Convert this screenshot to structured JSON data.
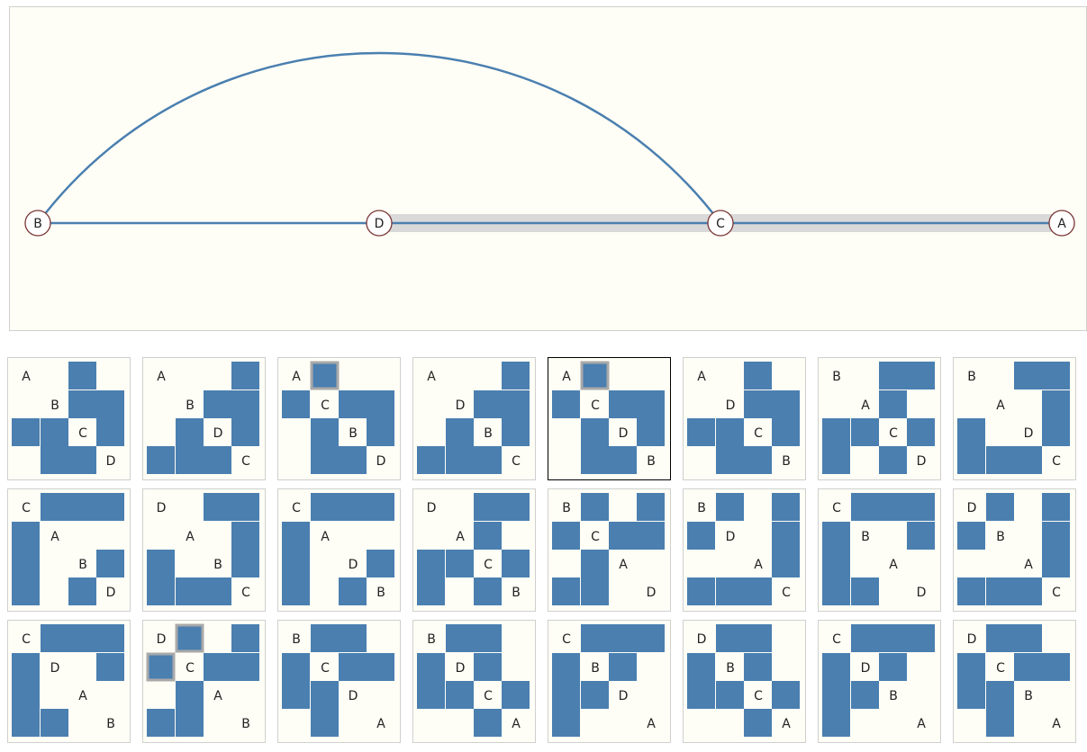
{
  "graph": {
    "nodes": [
      "B",
      "D",
      "C",
      "A"
    ],
    "edges": [
      [
        "B",
        "D"
      ],
      [
        "B",
        "C"
      ],
      [
        "D",
        "C"
      ],
      [
        "C",
        "A"
      ]
    ],
    "highlighted_path": [
      "D",
      "C",
      "A"
    ],
    "colors": {
      "edge": "#4a7fb0",
      "highlight": "#d9d9d9",
      "node_fill": "#ffffff",
      "node_stroke": "#7a3535",
      "background": "#fffef6"
    }
  },
  "matrices": [
    {
      "order": [
        "A",
        "B",
        "C",
        "D"
      ],
      "hl": [
        [
          0,
          3
        ],
        [
          3,
          0
        ]
      ]
    },
    {
      "order": [
        "A",
        "B",
        "D",
        "C"
      ],
      "hl": [
        [
          0,
          1
        ],
        [
          1,
          0
        ]
      ]
    },
    {
      "order": [
        "A",
        "C",
        "B",
        "D"
      ],
      "hl": [
        [
          0,
          1
        ],
        [
          3,
          0
        ]
      ]
    },
    {
      "order": [
        "A",
        "D",
        "B",
        "C"
      ],
      "hl": [
        [
          0,
          1
        ],
        [
          1,
          0
        ]
      ]
    },
    {
      "order": [
        "A",
        "C",
        "D",
        "B"
      ],
      "hl": [
        [
          0,
          1
        ],
        [
          2,
          0
        ]
      ]
    },
    {
      "order": [
        "A",
        "D",
        "C",
        "B"
      ],
      "hl": [
        [
          0,
          1
        ],
        [
          1,
          0
        ]
      ]
    },
    {
      "order": [
        "B",
        "A",
        "C",
        "D"
      ],
      "hl": [
        [
          1,
          3
        ],
        [
          3,
          1
        ]
      ]
    },
    {
      "order": [
        "B",
        "A",
        "D",
        "C"
      ],
      "hl": [
        [
          1,
          2
        ],
        [
          2,
          1
        ]
      ]
    },
    {
      "order": [
        "C",
        "A",
        "B",
        "D"
      ],
      "hl": [
        [
          1,
          3
        ],
        [
          3,
          1
        ]
      ]
    },
    {
      "order": [
        "D",
        "A",
        "B",
        "C"
      ],
      "hl": [
        [
          0,
          1
        ],
        [
          1,
          0
        ]
      ]
    },
    {
      "order": [
        "C",
        "A",
        "D",
        "B"
      ],
      "hl": [
        [
          1,
          2
        ],
        [
          2,
          1
        ]
      ]
    },
    {
      "order": [
        "D",
        "A",
        "C",
        "B"
      ],
      "hl": [
        [
          0,
          1
        ],
        [
          1,
          0
        ]
      ]
    },
    {
      "order": [
        "B",
        "C",
        "A",
        "D"
      ],
      "hl": [
        [
          2,
          3
        ],
        [
          3,
          2
        ]
      ]
    },
    {
      "order": [
        "B",
        "D",
        "A",
        "C"
      ],
      "hl": [
        [
          1,
          2
        ],
        [
          2,
          1
        ]
      ]
    },
    {
      "order": [
        "C",
        "B",
        "A",
        "D"
      ],
      "hl": [
        [
          2,
          3
        ],
        [
          3,
          2
        ]
      ]
    },
    {
      "order": [
        "D",
        "B",
        "A",
        "C"
      ],
      "hl": [
        [
          0,
          2
        ],
        [
          2,
          0
        ]
      ]
    },
    {
      "order": [
        "C",
        "D",
        "A",
        "B"
      ],
      "hl": [
        [
          1,
          2
        ],
        [
          2,
          1
        ]
      ]
    },
    {
      "order": [
        "D",
        "C",
        "A",
        "B"
      ],
      "hl": [
        [
          0,
          1
        ],
        [
          1,
          0
        ]
      ]
    },
    {
      "order": [
        "B",
        "C",
        "D",
        "A"
      ],
      "hl": [
        [
          2,
          3
        ],
        [
          3,
          2
        ]
      ]
    },
    {
      "order": [
        "B",
        "D",
        "C",
        "A"
      ],
      "hl": [
        [
          1,
          3
        ],
        [
          3,
          1
        ]
      ]
    },
    {
      "order": [
        "C",
        "B",
        "D",
        "A"
      ],
      "hl": [
        [
          2,
          3
        ],
        [
          3,
          2
        ]
      ]
    },
    {
      "order": [
        "D",
        "B",
        "C",
        "A"
      ],
      "hl": [
        [
          0,
          3
        ],
        [
          3,
          0
        ]
      ]
    },
    {
      "order": [
        "C",
        "D",
        "B",
        "A"
      ],
      "hl": [
        [
          1,
          3
        ],
        [
          3,
          1
        ]
      ]
    },
    {
      "order": [
        "D",
        "C",
        "B",
        "A"
      ],
      "hl": [
        [
          0,
          3
        ],
        [
          3,
          0
        ]
      ]
    }
  ],
  "selected_index": 4
}
